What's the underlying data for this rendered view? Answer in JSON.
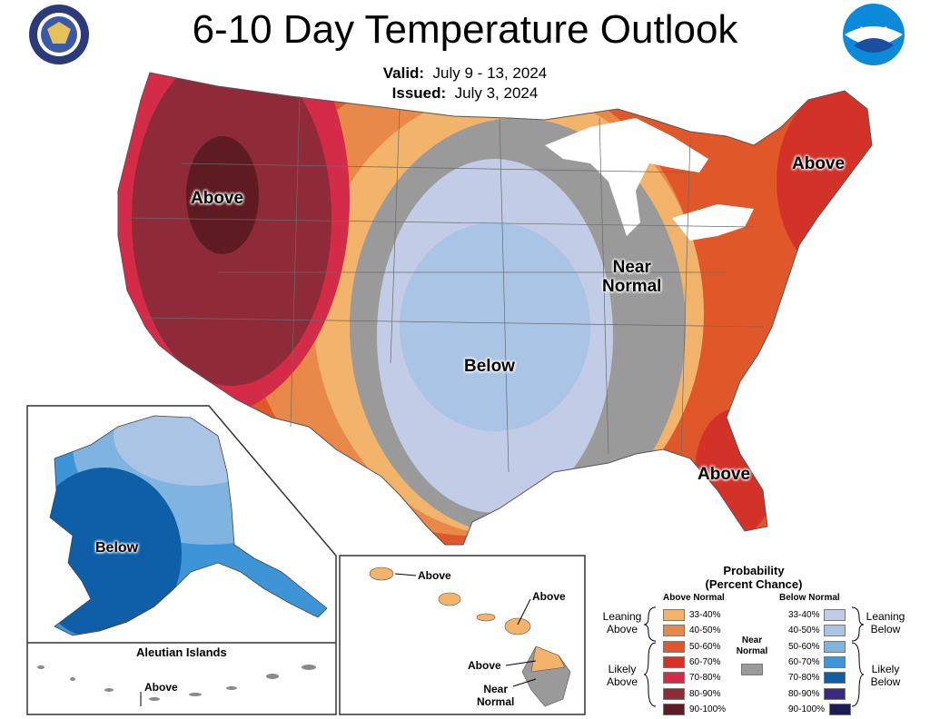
{
  "header": {
    "title": "6-10 Day Temperature Outlook",
    "valid_label": "Valid:",
    "valid_value": "July 9 - 13, 2024",
    "issued_label": "Issued:",
    "issued_value": "July 3, 2024"
  },
  "logos": {
    "left": "department-of-commerce-seal",
    "right_text": "NOAA"
  },
  "map_labels": {
    "west": "Above",
    "northeast": "Above",
    "near_normal_line1": "Near",
    "near_normal_line2": "Normal",
    "central": "Below",
    "southeast": "Above",
    "alaska": "Below",
    "aleutian_title": "Aleutian Islands",
    "aleutian": "Above",
    "hawaii_1": "Above",
    "hawaii_2": "Above",
    "hawaii_3": "Above",
    "hawaii_near_line1": "Near",
    "hawaii_near_line2": "Normal"
  },
  "legend": {
    "title_line1": "Probability",
    "title_line2": "(Percent Chance)",
    "above_header": "Above Normal",
    "below_header": "Below Normal",
    "near_line1": "Near",
    "near_line2": "Normal",
    "near_color": "#9a9a9a",
    "leaning_above_1": "Leaning",
    "leaning_above_2": "Above",
    "likely_above_1": "Likely",
    "likely_above_2": "Above",
    "leaning_below_1": "Leaning",
    "leaning_below_2": "Below",
    "likely_below_1": "Likely",
    "likely_below_2": "Below",
    "above": [
      {
        "range": "33-40%",
        "color": "#f2b36b"
      },
      {
        "range": "40-50%",
        "color": "#e8894a"
      },
      {
        "range": "50-60%",
        "color": "#e0572a"
      },
      {
        "range": "60-70%",
        "color": "#d23228"
      },
      {
        "range": "70-80%",
        "color": "#d42c48"
      },
      {
        "range": "80-90%",
        "color": "#8f2b38"
      },
      {
        "range": "90-100%",
        "color": "#5e1c22"
      }
    ],
    "below": [
      {
        "range": "33-40%",
        "color": "#c2cce6"
      },
      {
        "range": "40-50%",
        "color": "#a9c4e4"
      },
      {
        "range": "50-60%",
        "color": "#7fb4e0"
      },
      {
        "range": "60-70%",
        "color": "#3d95d8"
      },
      {
        "range": "70-80%",
        "color": "#0f5fa8"
      },
      {
        "range": "80-90%",
        "color": "#3a2a7e"
      },
      {
        "range": "90-100%",
        "color": "#1c1c52"
      }
    ]
  }
}
